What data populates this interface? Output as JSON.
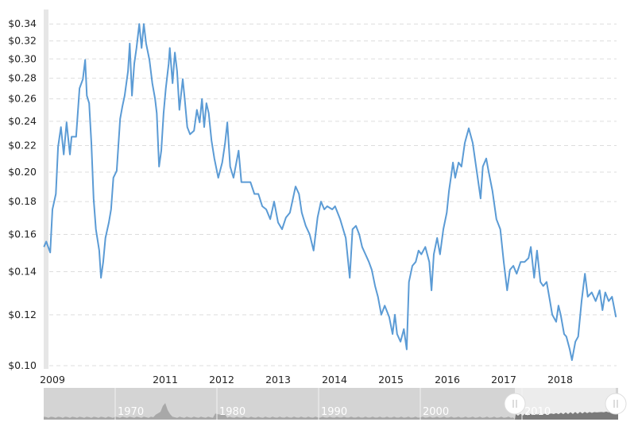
{
  "chart_data": {
    "type": "line",
    "title": "",
    "xlabel": "",
    "ylabel": "",
    "y_scale": "log",
    "ylim": [
      0.1,
      0.34
    ],
    "xlim": [
      2008.85,
      2019.0
    ],
    "grid": true,
    "line_color": "#5b9bd5",
    "y_ticks": [
      "$0.10",
      "$0.12",
      "$0.14",
      "$0.16",
      "$0.18",
      "$0.20",
      "$0.22",
      "$0.24",
      "$0.26",
      "$0.28",
      "$0.30",
      "$0.32",
      "$0.34"
    ],
    "y_tick_values": [
      0.1,
      0.12,
      0.14,
      0.16,
      0.18,
      0.2,
      0.22,
      0.24,
      0.26,
      0.28,
      0.3,
      0.32,
      0.34
    ],
    "x_ticks": [
      "2009",
      "2011",
      "2012",
      "2013",
      "2014",
      "2015",
      "2016",
      "2017",
      "2018"
    ],
    "x_tick_values": [
      2009,
      2011,
      2012,
      2013,
      2014,
      2015,
      2016,
      2017,
      2018
    ],
    "x": [
      2008.85,
      2008.89,
      2008.96,
      2009.0,
      2009.06,
      2009.1,
      2009.15,
      2009.2,
      2009.25,
      2009.31,
      2009.34,
      2009.42,
      2009.48,
      2009.54,
      2009.58,
      2009.61,
      2009.65,
      2009.69,
      2009.73,
      2009.77,
      2009.83,
      2009.86,
      2009.9,
      2009.94,
      2010.0,
      2010.04,
      2010.08,
      2010.14,
      2010.2,
      2010.24,
      2010.28,
      2010.34,
      2010.37,
      2010.41,
      2010.45,
      2010.49,
      2010.54,
      2010.58,
      2010.62,
      2010.66,
      2010.72,
      2010.77,
      2010.82,
      2010.85,
      2010.89,
      2010.93,
      2010.97,
      2011.01,
      2011.06,
      2011.08,
      2011.13,
      2011.17,
      2011.21,
      2011.25,
      2011.31,
      2011.34,
      2011.39,
      2011.44,
      2011.51,
      2011.56,
      2011.61,
      2011.65,
      2011.69,
      2011.73,
      2011.77,
      2011.82,
      2011.87,
      2011.94,
      2012.01,
      2012.06,
      2012.1,
      2012.15,
      2012.21,
      2012.3,
      2012.35,
      2012.44,
      2012.51,
      2012.58,
      2012.65,
      2012.72,
      2012.79,
      2012.86,
      2012.93,
      2013.0,
      2013.07,
      2013.14,
      2013.21,
      2013.31,
      2013.37,
      2013.42,
      2013.49,
      2013.56,
      2013.63,
      2013.7,
      2013.76,
      2013.82,
      2013.87,
      2013.96,
      2014.01,
      2014.1,
      2014.2,
      2014.27,
      2014.32,
      2014.38,
      2014.44,
      2014.49,
      2014.55,
      2014.61,
      2014.66,
      2014.72,
      2014.77,
      2014.83,
      2014.89,
      2014.97,
      2015.03,
      2015.07,
      2015.11,
      2015.17,
      2015.23,
      2015.28,
      2015.32,
      2015.38,
      2015.44,
      2015.49,
      2015.54,
      2015.61,
      2015.68,
      2015.72,
      2015.76,
      2015.82,
      2015.87,
      2015.93,
      2015.99,
      2016.03,
      2016.07,
      2016.1,
      2016.14,
      2016.2,
      2016.25,
      2016.31,
      2016.38,
      2016.45,
      2016.51,
      2016.56,
      2016.59,
      2016.63,
      2016.69,
      2016.73,
      2016.8,
      2016.87,
      2016.94,
      2017.0,
      2017.06,
      2017.11,
      2017.17,
      2017.23,
      2017.3,
      2017.37,
      2017.44,
      2017.48,
      2017.54,
      2017.59,
      2017.65,
      2017.7,
      2017.76,
      2017.82,
      2017.86,
      2017.93,
      2017.97,
      2018.01,
      2018.07,
      2018.11,
      2018.17,
      2018.21,
      2018.27,
      2018.32,
      2018.38,
      2018.44,
      2018.49,
      2018.56,
      2018.63,
      2018.7,
      2018.75,
      2018.8,
      2018.86,
      2018.92,
      2018.99
    ],
    "values": [
      0.153,
      0.156,
      0.15,
      0.175,
      0.185,
      0.219,
      0.235,
      0.213,
      0.239,
      0.213,
      0.227,
      0.227,
      0.27,
      0.279,
      0.299,
      0.263,
      0.256,
      0.222,
      0.182,
      0.163,
      0.151,
      0.137,
      0.145,
      0.158,
      0.167,
      0.175,
      0.196,
      0.201,
      0.242,
      0.253,
      0.263,
      0.287,
      0.317,
      0.263,
      0.295,
      0.312,
      0.34,
      0.312,
      0.34,
      0.317,
      0.299,
      0.275,
      0.26,
      0.247,
      0.204,
      0.216,
      0.247,
      0.27,
      0.295,
      0.312,
      0.275,
      0.307,
      0.287,
      0.25,
      0.279,
      0.263,
      0.235,
      0.229,
      0.232,
      0.25,
      0.239,
      0.26,
      0.235,
      0.256,
      0.247,
      0.224,
      0.21,
      0.196,
      0.207,
      0.222,
      0.239,
      0.204,
      0.196,
      0.216,
      0.193,
      0.193,
      0.193,
      0.185,
      0.185,
      0.177,
      0.175,
      0.169,
      0.18,
      0.167,
      0.163,
      0.17,
      0.173,
      0.19,
      0.185,
      0.173,
      0.165,
      0.16,
      0.151,
      0.17,
      0.18,
      0.175,
      0.177,
      0.175,
      0.177,
      0.169,
      0.158,
      0.137,
      0.163,
      0.165,
      0.16,
      0.153,
      0.149,
      0.145,
      0.141,
      0.133,
      0.128,
      0.12,
      0.124,
      0.119,
      0.112,
      0.12,
      0.112,
      0.109,
      0.114,
      0.106,
      0.135,
      0.143,
      0.145,
      0.151,
      0.149,
      0.153,
      0.145,
      0.131,
      0.149,
      0.158,
      0.149,
      0.163,
      0.173,
      0.187,
      0.198,
      0.207,
      0.196,
      0.207,
      0.204,
      0.222,
      0.234,
      0.222,
      0.204,
      0.19,
      0.182,
      0.204,
      0.21,
      0.201,
      0.187,
      0.169,
      0.163,
      0.145,
      0.131,
      0.141,
      0.143,
      0.139,
      0.145,
      0.145,
      0.147,
      0.153,
      0.137,
      0.151,
      0.135,
      0.133,
      0.135,
      0.126,
      0.12,
      0.117,
      0.124,
      0.12,
      0.112,
      0.111,
      0.106,
      0.102,
      0.109,
      0.111,
      0.126,
      0.139,
      0.128,
      0.13,
      0.126,
      0.131,
      0.122,
      0.13,
      0.126,
      0.128,
      0.119
    ]
  },
  "navigator": {
    "labels": [
      "1970",
      "1980",
      "1990",
      "2000",
      "2010"
    ],
    "handle_icon": "grip-handle-icon"
  }
}
